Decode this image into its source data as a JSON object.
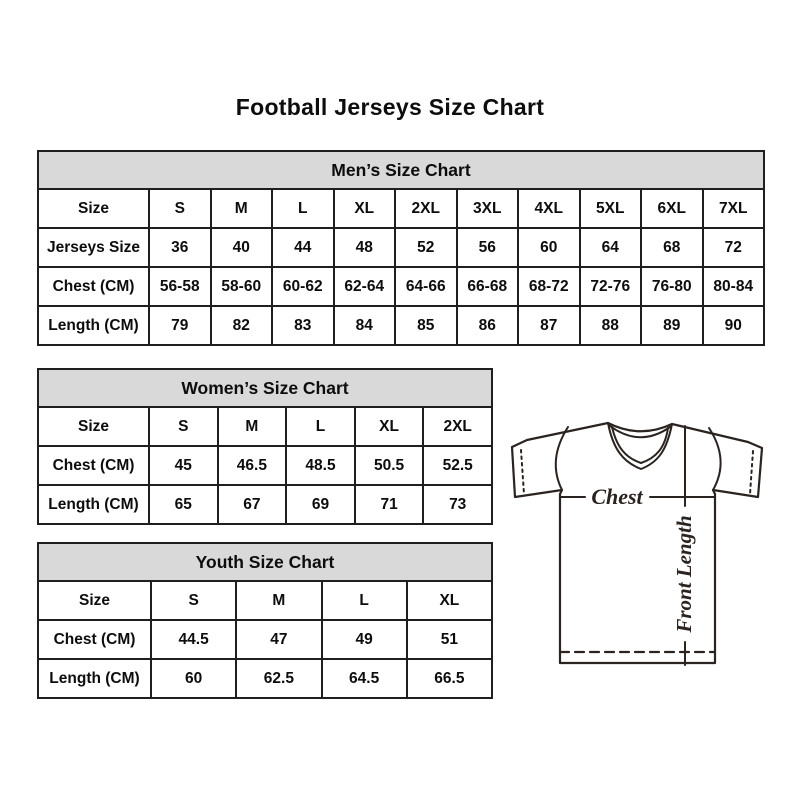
{
  "page": {
    "title": "Football Jerseys Size Chart"
  },
  "tables": {
    "men": {
      "title": "Men’s Size Chart",
      "rows": [
        {
          "label": "Size",
          "values": [
            "S",
            "M",
            "L",
            "XL",
            "2XL",
            "3XL",
            "4XL",
            "5XL",
            "6XL",
            "7XL"
          ]
        },
        {
          "label": "Jerseys Size",
          "values": [
            "36",
            "40",
            "44",
            "48",
            "52",
            "56",
            "60",
            "64",
            "68",
            "72"
          ]
        },
        {
          "label": "Chest (CM)",
          "values": [
            "56-58",
            "58-60",
            "60-62",
            "62-64",
            "64-66",
            "66-68",
            "68-72",
            "72-76",
            "76-80",
            "80-84"
          ]
        },
        {
          "label": "Length (CM)",
          "values": [
            "79",
            "82",
            "83",
            "84",
            "85",
            "86",
            "87",
            "88",
            "89",
            "90"
          ]
        }
      ]
    },
    "women": {
      "title": "Women’s Size Chart",
      "rows": [
        {
          "label": "Size",
          "values": [
            "S",
            "M",
            "L",
            "XL",
            "2XL"
          ]
        },
        {
          "label": "Chest (CM)",
          "values": [
            "45",
            "46.5",
            "48.5",
            "50.5",
            "52.5"
          ]
        },
        {
          "label": "Length (CM)",
          "values": [
            "65",
            "67",
            "69",
            "71",
            "73"
          ]
        }
      ]
    },
    "youth": {
      "title": "Youth Size Chart",
      "rows": [
        {
          "label": "Size",
          "values": [
            "S",
            "M",
            "L",
            "XL"
          ]
        },
        {
          "label": "Chest (CM)",
          "values": [
            "44.5",
            "47",
            "49",
            "51"
          ]
        },
        {
          "label": "Length (CM)",
          "values": [
            "60",
            "62.5",
            "64.5",
            "66.5"
          ]
        }
      ]
    }
  },
  "diagram": {
    "chest_label": "Chest",
    "front_length_label": "Front Length"
  },
  "colors": {
    "table_header_bg": "#d9d9d9",
    "table_border": "#1f1f1f",
    "text": "#0d0d0d",
    "diagram_line": "#2a2320"
  }
}
